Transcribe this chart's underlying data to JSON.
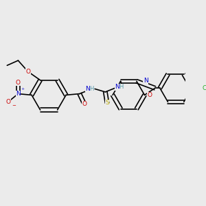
{
  "background_color": "#ebebeb",
  "figsize": [
    3.0,
    3.0
  ],
  "dpi": 100,
  "colors": {
    "C": "#000000",
    "N": "#0000cc",
    "O": "#cc0000",
    "S": "#bbaa00",
    "Cl": "#22aa22",
    "H": "#5599aa",
    "bond": "#000000"
  },
  "font_size": 6.5
}
